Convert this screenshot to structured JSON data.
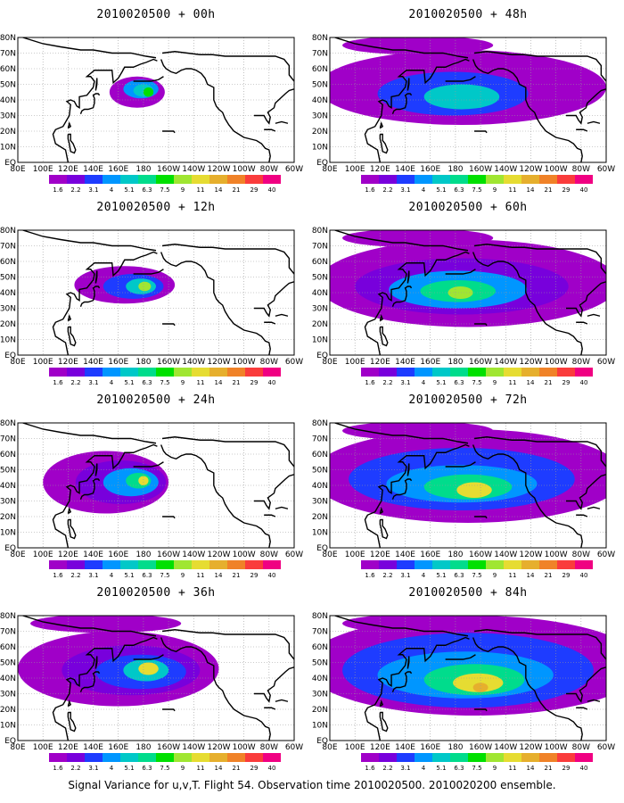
{
  "caption": "Signal Variance for u,v,T. Flight 54. Observation time 2010020500. 2010020200 ensemble.",
  "colorbar": {
    "labels": [
      "1.6",
      "2.2",
      "3.1",
      "4",
      "5.1",
      "6.3",
      "7.5",
      "9",
      "11",
      "14",
      "21",
      "29",
      "40"
    ],
    "colors": [
      "#a000c8",
      "#7800dc",
      "#1e3cff",
      "#0096ff",
      "#00c8c8",
      "#00dc8c",
      "#00e000",
      "#a0e632",
      "#e6dc32",
      "#e6af2d",
      "#f08228",
      "#fa3c3c",
      "#f00082"
    ]
  },
  "axes": {
    "y_ticks": [
      "EQ",
      "10N",
      "20N",
      "30N",
      "40N",
      "50N",
      "60N",
      "70N",
      "80N"
    ],
    "x_ticks": [
      "80E",
      "100E",
      "120E",
      "140E",
      "160E",
      "180",
      "160W",
      "140W",
      "120W",
      "100W",
      "80W",
      "60W"
    ],
    "lon_range": [
      80,
      300
    ],
    "lat_range": [
      0,
      80
    ]
  },
  "chart_data": [
    {
      "type": "heatmap",
      "title": "2010020500 + 00h",
      "peak_value": 7.5,
      "extent": 1
    },
    {
      "type": "heatmap",
      "title": "2010020500 + 12h",
      "peak_value": 9,
      "extent": 2
    },
    {
      "type": "heatmap",
      "title": "2010020500 + 24h",
      "peak_value": 11,
      "extent": 3
    },
    {
      "type": "heatmap",
      "title": "2010020500 + 36h",
      "peak_value": 11,
      "extent": 4
    },
    {
      "type": "heatmap",
      "title": "2010020500 + 48h",
      "peak_value": 7.5,
      "extent": 4
    },
    {
      "type": "heatmap",
      "title": "2010020500 + 60h",
      "peak_value": 9,
      "extent": 5
    },
    {
      "type": "heatmap",
      "title": "2010020500 + 72h",
      "peak_value": 11,
      "extent": 5
    },
    {
      "type": "heatmap",
      "title": "2010020500 + 84h",
      "peak_value": 14,
      "extent": 6
    }
  ]
}
